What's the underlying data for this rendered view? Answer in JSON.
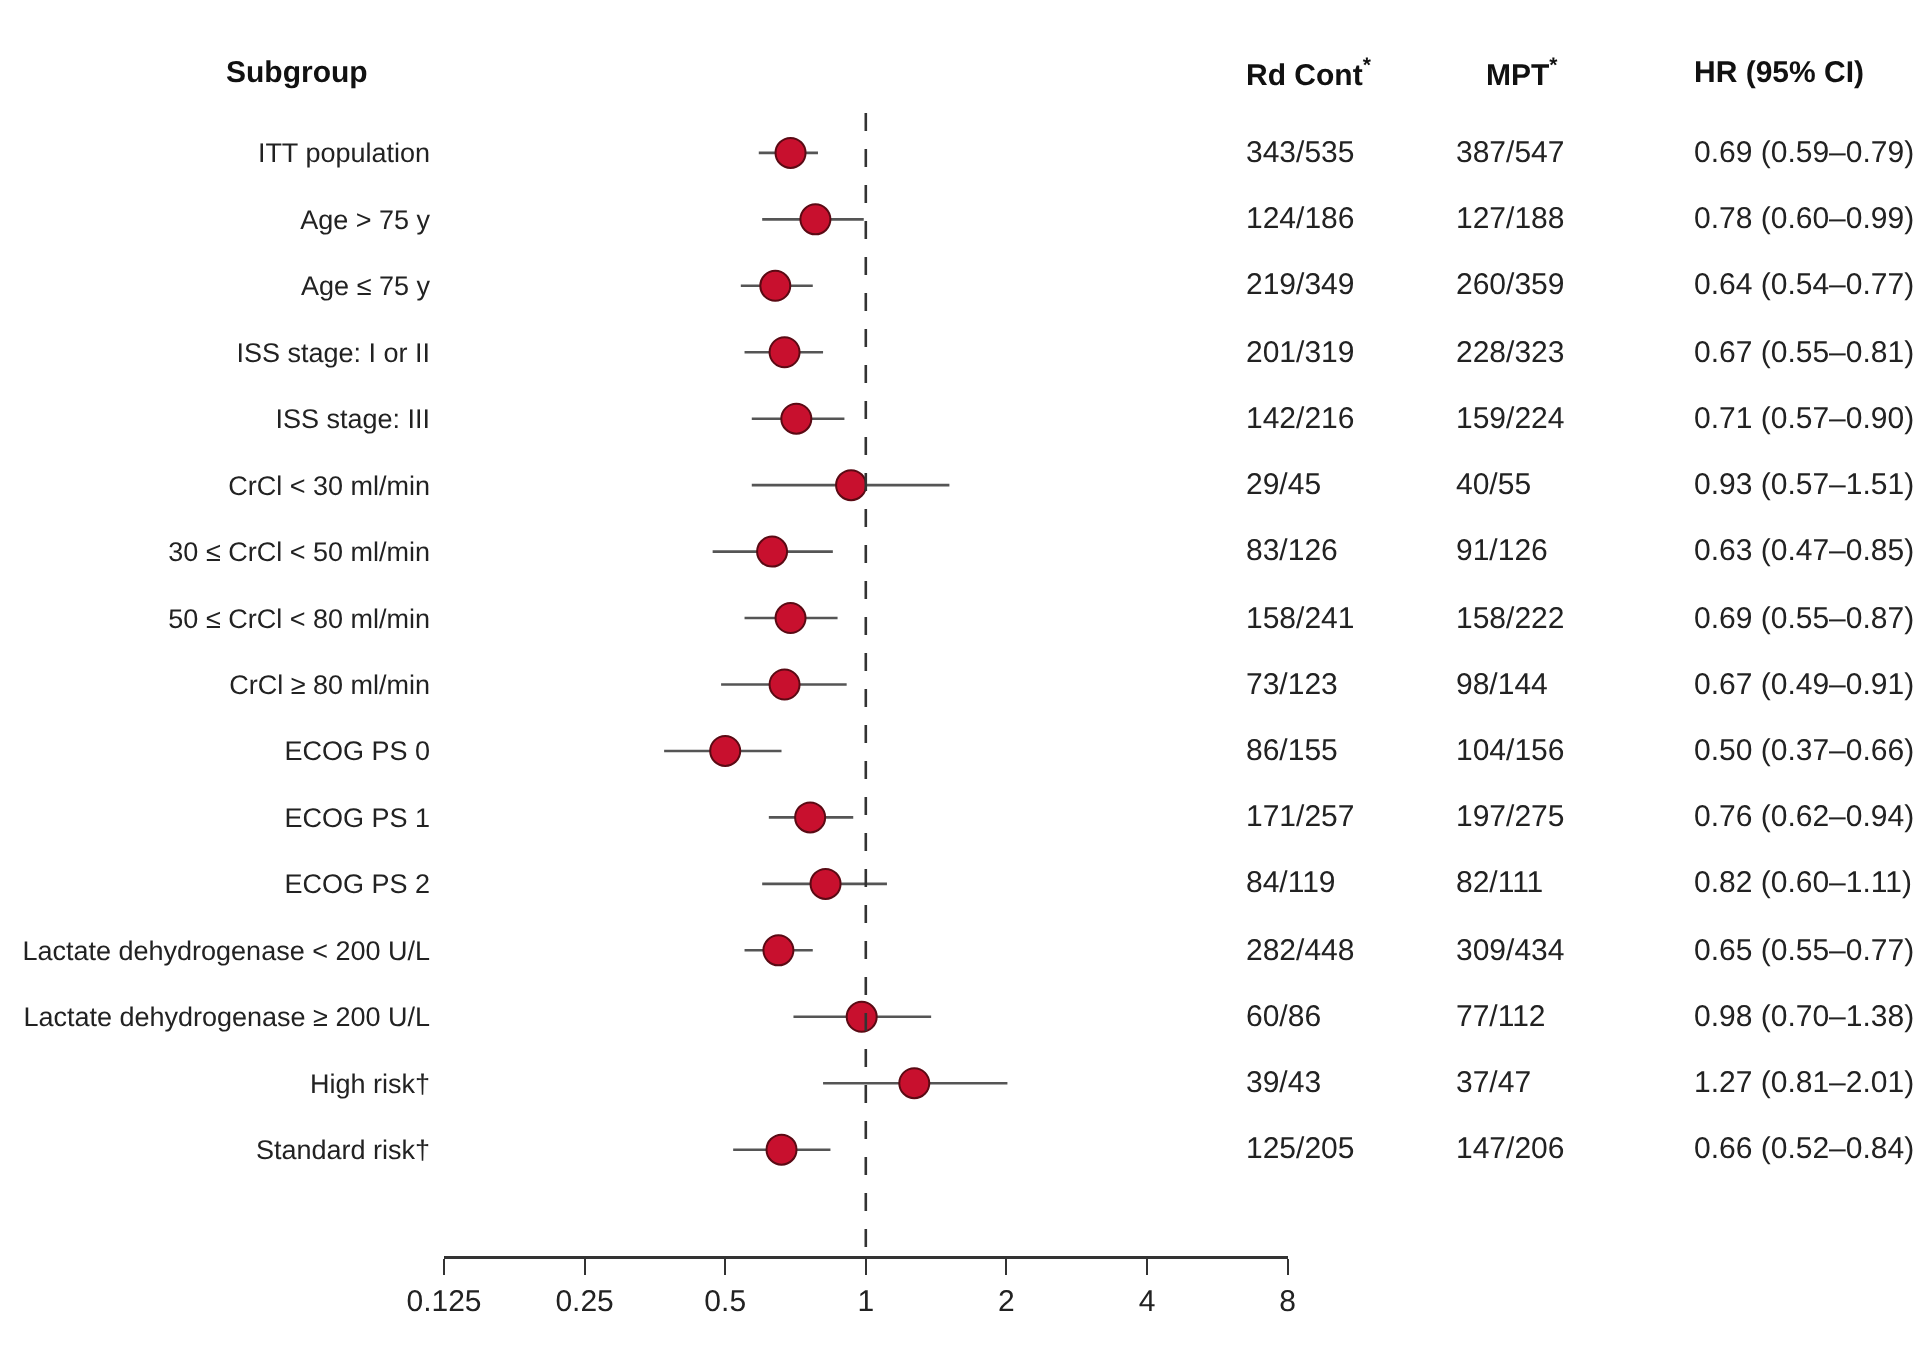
{
  "chart_data": {
    "type": "scatter",
    "orientation": "horizontal",
    "ylabel": "Subgroup",
    "categories": [
      "ITT population",
      "Age > 75 y",
      "Age ≤ 75 y",
      "ISS stage: I or II",
      "ISS stage: III",
      "CrCl < 30 ml/min",
      "30 ≤ CrCl < 50 ml/min",
      "50 ≤ CrCl < 80 ml/min",
      "CrCl ≥ 80 ml/min",
      "ECOG PS 0",
      "ECOG PS 1",
      "ECOG PS 2",
      "Lactate dehydrogenase < 200 U/L",
      "Lactate dehydrogenase ≥ 200 U/L",
      "High risk†",
      "Standard risk†"
    ],
    "series": [
      {
        "color": "#c8102e",
        "values": [
          0.69,
          0.78,
          0.64,
          0.67,
          0.71,
          0.93,
          0.63,
          0.69,
          0.67,
          0.5,
          0.76,
          0.82,
          0.65,
          0.98,
          1.27,
          0.66
        ],
        "errors": [
          [
            0.59,
            0.79
          ],
          [
            0.6,
            0.99
          ],
          [
            0.54,
            0.77
          ],
          [
            0.55,
            0.81
          ],
          [
            0.57,
            0.9
          ],
          [
            0.57,
            1.51
          ],
          [
            0.47,
            0.85
          ],
          [
            0.55,
            0.87
          ],
          [
            0.49,
            0.91
          ],
          [
            0.37,
            0.66
          ],
          [
            0.62,
            0.94
          ],
          [
            0.6,
            1.11
          ],
          [
            0.55,
            0.77
          ],
          [
            0.7,
            1.38
          ],
          [
            0.81,
            2.01
          ],
          [
            0.52,
            0.84
          ]
        ],
        "value_labels": [
          "0.69 (0.59–0.79)",
          "0.78 (0.60–0.99)",
          "0.64 (0.54–0.77)",
          "0.67 (0.55–0.81)",
          "0.71 (0.57–0.90)",
          "0.93 (0.57–1.51)",
          "0.63 (0.47–0.85)",
          "0.69 (0.55–0.87)",
          "0.67 (0.49–0.91)",
          "0.50 (0.37–0.66)",
          "0.76 (0.62–0.94)",
          "0.82 (0.60–1.11)",
          "0.65 (0.55–0.77)",
          "0.98 (0.70–1.38)",
          "1.27 (0.81–2.01)",
          "0.66 (0.52–0.84)"
        ]
      }
    ],
    "annotations": [
      "Rd Cont$^{*}$",
      "MPT$^{*}$",
      "HR (95% CI)",
      "343/535",
      "124/186",
      "219/349",
      "201/319",
      "142/216",
      "29/45",
      "83/126",
      "158/241",
      "73/123",
      "86/155",
      "171/257",
      "84/119",
      "282/448",
      "60/86",
      "39/43",
      "125/205",
      "387/547",
      "127/188",
      "260/359",
      "228/323",
      "159/224",
      "40/55",
      "91/126",
      "158/222",
      "98/144",
      "104/156",
      "197/275",
      "82/111",
      "309/434",
      "77/112",
      "37/47",
      "147/206"
    ],
    "log": "x",
    "xlim": [
      0.125,
      8
    ],
    "xticks": [
      0.125,
      0.25,
      0.5,
      1,
      2,
      4,
      8
    ],
    "grid": false,
    "marker": "circle",
    "ref_lines": [
      {
        "axis": "x",
        "value": 1,
        "line_style": "dashed",
        "color": "#333333"
      }
    ]
  }
}
